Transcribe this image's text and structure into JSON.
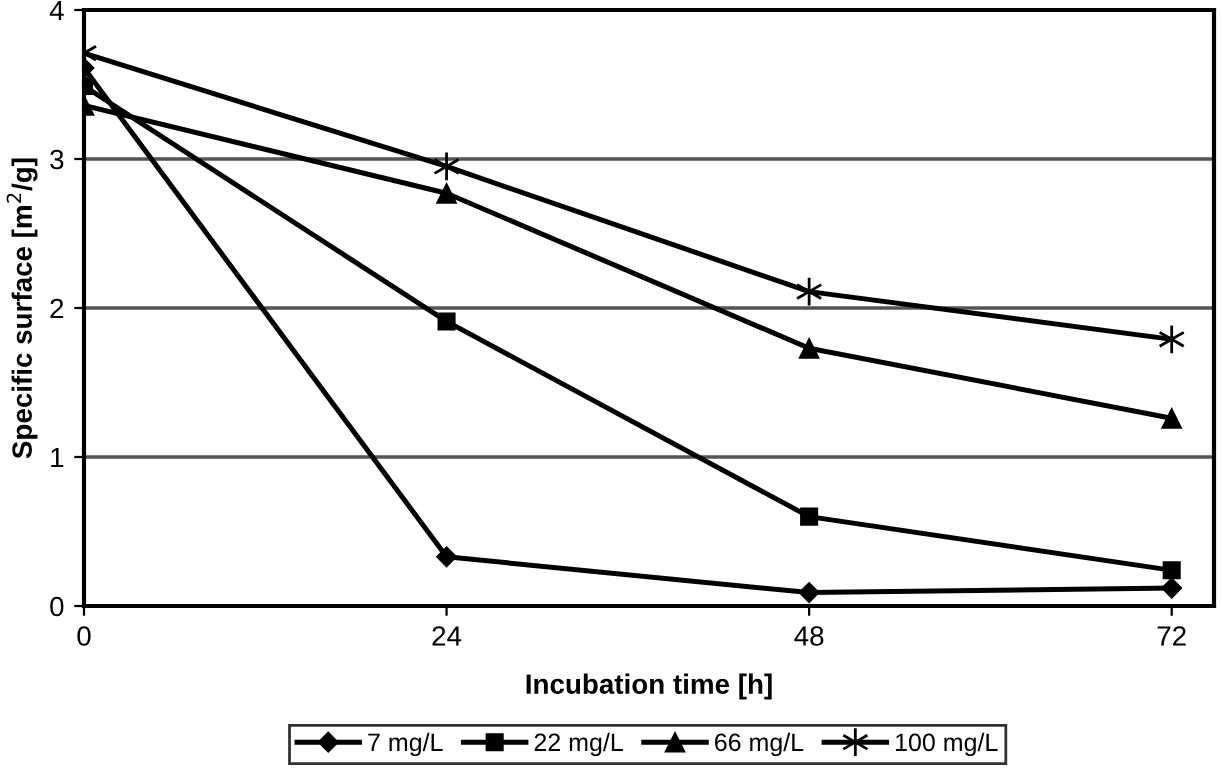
{
  "chart_data": {
    "type": "line",
    "xlabel": "Incubation time [h]",
    "ylabel": "Specific surface [m$^{2}$/g]",
    "x": [
      0,
      24,
      48,
      72
    ],
    "xlim": [
      0,
      74.8
    ],
    "xticks": [
      0,
      24,
      48,
      72
    ],
    "ylim": [
      0,
      4
    ],
    "yticks": [
      0,
      1,
      2,
      3,
      4
    ],
    "grid": "y",
    "legend": "bottom",
    "series": [
      {
        "name": "7 mg/L",
        "color": "#000000",
        "marker": "diamond",
        "values": [
          3.61,
          0.33,
          0.09,
          0.12
        ]
      },
      {
        "name": "22 mg/L",
        "color": "#000000",
        "marker": "square",
        "values": [
          3.49,
          1.91,
          0.6,
          0.24
        ]
      },
      {
        "name": "66 mg/L",
        "color": "#000000",
        "marker": "triangle",
        "values": [
          3.36,
          2.77,
          1.73,
          1.26
        ]
      },
      {
        "name": "100 mg/L",
        "color": "#000000",
        "marker": "cross",
        "values": [
          3.71,
          2.95,
          2.11,
          1.79
        ]
      }
    ]
  }
}
